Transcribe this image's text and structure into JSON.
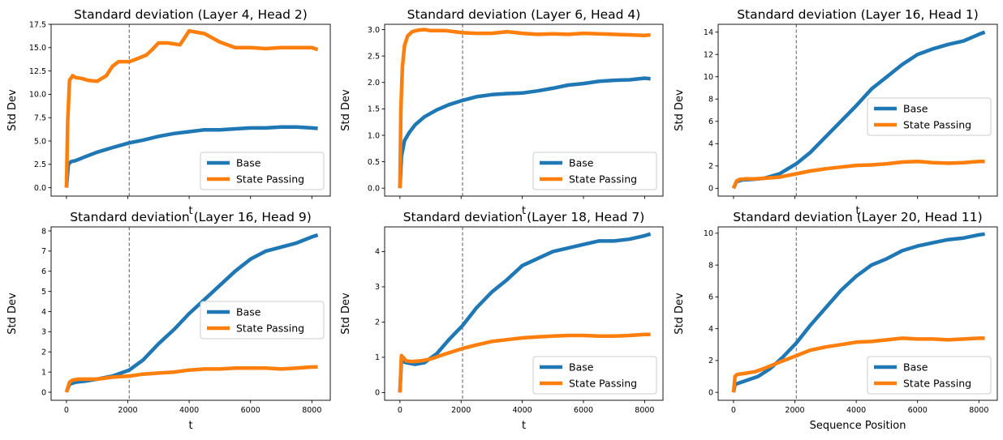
{
  "figure": {
    "xlabel_bottom_right": "Sequence Position"
  },
  "colors": {
    "base": "#1f77b4",
    "state": "#ff7f0e",
    "vline": "#777777",
    "axis": "#000000"
  },
  "chart_data": [
    {
      "type": "line",
      "title": "Standard deviation (Layer 4, Head 2)",
      "xlabel": "t",
      "ylabel": "Std Dev",
      "xlim": [
        -500,
        8600
      ],
      "ylim": [
        -0.9,
        17.5
      ],
      "xticks": [],
      "xtick_labels": [],
      "yticks": [
        0,
        2.5,
        5,
        7.5,
        10,
        12.5,
        15,
        17.5
      ],
      "ytick_labels": [
        "0.0",
        "2.5",
        "5.0",
        "7.5",
        "10.0",
        "12.5",
        "15.0",
        "17.5"
      ],
      "vline": 2048,
      "legend": {
        "position": "lower-right",
        "entries": [
          "Base",
          "State Passing"
        ]
      },
      "series": [
        {
          "name": "Base",
          "x": [
            0,
            60,
            150,
            300,
            600,
            1000,
            1500,
            2048,
            2500,
            3000,
            3500,
            4000,
            4500,
            5000,
            5500,
            6000,
            6500,
            7000,
            7500,
            8000,
            8192
          ],
          "y": [
            0,
            2.5,
            2.8,
            2.9,
            3.3,
            3.8,
            4.3,
            4.8,
            5.1,
            5.5,
            5.8,
            6.0,
            6.2,
            6.2,
            6.3,
            6.4,
            6.4,
            6.5,
            6.5,
            6.4,
            6.35
          ]
        },
        {
          "name": "State Passing",
          "x": [
            0,
            40,
            100,
            200,
            300,
            500,
            700,
            1000,
            1300,
            1500,
            1700,
            2048,
            2300,
            2600,
            2800,
            3000,
            3300,
            3700,
            4000,
            4500,
            5000,
            5500,
            6000,
            6500,
            7000,
            7500,
            8000,
            8192
          ],
          "y": [
            0,
            7.0,
            11.5,
            12.0,
            11.8,
            11.7,
            11.5,
            11.4,
            12.0,
            13.0,
            13.5,
            13.5,
            13.8,
            14.2,
            14.8,
            15.5,
            15.5,
            15.3,
            16.8,
            16.5,
            15.6,
            15.0,
            15.0,
            14.9,
            15.0,
            15.0,
            15.0,
            14.8
          ]
        }
      ]
    },
    {
      "type": "line",
      "title": "Standard deviation (Layer 6, Head 4)",
      "xlabel": "t",
      "ylabel": "Std Dev",
      "xlim": [
        -500,
        8600
      ],
      "ylim": [
        -0.15,
        3.1
      ],
      "xticks": [],
      "xtick_labels": [],
      "yticks": [
        0,
        0.5,
        1,
        1.5,
        2,
        2.5,
        3
      ],
      "ytick_labels": [
        "0.0",
        "0.5",
        "1.0",
        "1.5",
        "2.0",
        "2.5",
        "3.0"
      ],
      "vline": 2048,
      "legend": {
        "position": "lower-right",
        "entries": [
          "Base",
          "State Passing"
        ]
      },
      "series": [
        {
          "name": "Base",
          "x": [
            0,
            50,
            150,
            300,
            500,
            800,
            1200,
            1600,
            2048,
            2500,
            3000,
            3500,
            4000,
            4500,
            5000,
            5500,
            6000,
            6500,
            7000,
            7500,
            8000,
            8192
          ],
          "y": [
            0,
            0.6,
            0.9,
            1.05,
            1.2,
            1.35,
            1.48,
            1.58,
            1.66,
            1.73,
            1.77,
            1.79,
            1.8,
            1.84,
            1.89,
            1.95,
            1.98,
            2.02,
            2.04,
            2.05,
            2.08,
            2.07
          ]
        },
        {
          "name": "State Passing",
          "x": [
            0,
            30,
            80,
            150,
            250,
            400,
            600,
            800,
            1000,
            1500,
            2048,
            2500,
            3000,
            3500,
            4000,
            4500,
            5000,
            5500,
            6000,
            6500,
            7000,
            7500,
            8000,
            8192
          ],
          "y": [
            0,
            1.5,
            2.3,
            2.7,
            2.88,
            2.96,
            2.99,
            3.0,
            2.98,
            2.98,
            2.94,
            2.93,
            2.93,
            2.96,
            2.93,
            2.91,
            2.92,
            2.91,
            2.93,
            2.92,
            2.91,
            2.9,
            2.89,
            2.9
          ]
        }
      ]
    },
    {
      "type": "line",
      "title": "Standard deviation (Layer 16, Head 1)",
      "xlabel": "t",
      "ylabel": "Std Dev",
      "xlim": [
        -500,
        8600
      ],
      "ylim": [
        -0.7,
        14.7
      ],
      "xticks": [],
      "xtick_labels": [],
      "yticks": [
        0,
        2,
        4,
        6,
        8,
        10,
        12,
        14
      ],
      "ytick_labels": [
        "0",
        "2",
        "4",
        "6",
        "8",
        "10",
        "12",
        "14"
      ],
      "vline": 2048,
      "legend": {
        "position": "center-right",
        "entries": [
          "Base",
          "State Passing"
        ]
      },
      "series": [
        {
          "name": "Base",
          "x": [
            0,
            100,
            300,
            600,
            1000,
            1500,
            2048,
            2500,
            3000,
            3500,
            4000,
            4500,
            5000,
            5500,
            6000,
            6500,
            7000,
            7500,
            8000,
            8192
          ],
          "y": [
            0,
            0.6,
            0.75,
            0.8,
            0.9,
            1.3,
            2.2,
            3.2,
            4.6,
            6.0,
            7.4,
            8.9,
            10.0,
            11.1,
            12.0,
            12.5,
            12.9,
            13.2,
            13.8,
            14.0
          ]
        },
        {
          "name": "State Passing",
          "x": [
            0,
            100,
            200,
            400,
            700,
            1000,
            1500,
            2048,
            2500,
            3000,
            3500,
            4000,
            4500,
            5000,
            5500,
            6000,
            6500,
            7000,
            7500,
            8000,
            8192
          ],
          "y": [
            0,
            0.65,
            0.8,
            0.85,
            0.85,
            0.9,
            1.0,
            1.3,
            1.55,
            1.75,
            1.9,
            2.05,
            2.1,
            2.2,
            2.35,
            2.4,
            2.3,
            2.25,
            2.3,
            2.4,
            2.4
          ]
        }
      ]
    },
    {
      "type": "line",
      "title": "Standard deviation (Layer 16, Head 9)",
      "xlabel": "t",
      "ylabel": "Std Dev",
      "xlim": [
        -500,
        8600
      ],
      "ylim": [
        -0.4,
        8.2
      ],
      "xticks": [
        0,
        2000,
        4000,
        6000,
        8000
      ],
      "xtick_labels": [
        "0",
        "2000",
        "4000",
        "6000",
        "8000"
      ],
      "yticks": [
        0,
        1,
        2,
        3,
        4,
        5,
        6,
        7,
        8
      ],
      "ytick_labels": [
        "0",
        "1",
        "2",
        "3",
        "4",
        "5",
        "6",
        "7",
        "8"
      ],
      "vline": 2048,
      "legend": {
        "position": "center-right",
        "entries": [
          "Base",
          "State Passing"
        ]
      },
      "series": [
        {
          "name": "Base",
          "x": [
            0,
            100,
            300,
            600,
            1000,
            1500,
            2048,
            2500,
            3000,
            3500,
            4000,
            4500,
            5000,
            5500,
            6000,
            6500,
            7000,
            7500,
            8000,
            8192
          ],
          "y": [
            0,
            0.4,
            0.5,
            0.55,
            0.65,
            0.8,
            1.1,
            1.6,
            2.4,
            3.1,
            3.9,
            4.6,
            5.3,
            6.0,
            6.6,
            7.0,
            7.2,
            7.4,
            7.7,
            7.8
          ]
        },
        {
          "name": "State Passing",
          "x": [
            0,
            100,
            200,
            400,
            700,
            1000,
            1500,
            2048,
            2500,
            3000,
            3500,
            4000,
            4500,
            5000,
            5500,
            6000,
            6500,
            7000,
            7500,
            8000,
            8192
          ],
          "y": [
            0,
            0.5,
            0.6,
            0.65,
            0.65,
            0.65,
            0.75,
            0.8,
            0.9,
            0.95,
            1.0,
            1.1,
            1.15,
            1.15,
            1.2,
            1.2,
            1.2,
            1.15,
            1.2,
            1.25,
            1.25
          ]
        }
      ]
    },
    {
      "type": "line",
      "title": "Standard deviation (Layer 18, Head 7)",
      "xlabel": "t",
      "ylabel": "Std Dev",
      "xlim": [
        -500,
        8600
      ],
      "ylim": [
        -0.22,
        4.7
      ],
      "xticks": [
        0,
        2000,
        4000,
        6000,
        8000
      ],
      "xtick_labels": [
        "0",
        "2000",
        "4000",
        "6000",
        "8000"
      ],
      "yticks": [
        0,
        1,
        2,
        3,
        4
      ],
      "ytick_labels": [
        "0",
        "1",
        "2",
        "3",
        "4"
      ],
      "vline": 2048,
      "legend": {
        "position": "lower-right",
        "entries": [
          "Base",
          "State Passing"
        ]
      },
      "series": [
        {
          "name": "Base",
          "x": [
            0,
            50,
            200,
            500,
            800,
            1200,
            1600,
            2048,
            2500,
            3000,
            3500,
            4000,
            4500,
            5000,
            5500,
            6000,
            6500,
            7000,
            7500,
            8000,
            8192
          ],
          "y": [
            0,
            0.9,
            0.85,
            0.8,
            0.85,
            1.1,
            1.5,
            1.9,
            2.4,
            2.85,
            3.2,
            3.6,
            3.8,
            4.0,
            4.1,
            4.2,
            4.3,
            4.3,
            4.35,
            4.45,
            4.5
          ]
        },
        {
          "name": "State Passing",
          "x": [
            0,
            50,
            100,
            200,
            400,
            700,
            1000,
            1500,
            2048,
            2500,
            3000,
            3500,
            4000,
            4500,
            5000,
            5500,
            6000,
            6500,
            7000,
            7500,
            8000,
            8192
          ],
          "y": [
            0,
            1.05,
            1.0,
            0.9,
            0.88,
            0.9,
            0.95,
            1.1,
            1.25,
            1.35,
            1.45,
            1.5,
            1.55,
            1.58,
            1.6,
            1.62,
            1.62,
            1.6,
            1.6,
            1.62,
            1.65,
            1.65
          ]
        }
      ]
    },
    {
      "type": "line",
      "title": "Standard deviation (Layer 20, Head 11)",
      "xlabel": "Sequence Position",
      "ylabel": "Std Dev",
      "xlim": [
        -500,
        8600
      ],
      "ylim": [
        -0.5,
        10.4
      ],
      "xticks": [
        0,
        2000,
        4000,
        6000,
        8000
      ],
      "xtick_labels": [
        "0",
        "2000",
        "4000",
        "6000",
        "8000"
      ],
      "yticks": [
        0,
        2,
        4,
        6,
        8,
        10
      ],
      "ytick_labels": [
        "0",
        "2",
        "4",
        "6",
        "8",
        "10"
      ],
      "vline": 2048,
      "legend": {
        "position": "lower-right",
        "entries": [
          "Base",
          "State Passing"
        ]
      },
      "series": [
        {
          "name": "Base",
          "x": [
            0,
            50,
            200,
            500,
            800,
            1200,
            1600,
            2048,
            2500,
            3000,
            3500,
            4000,
            4500,
            5000,
            5500,
            6000,
            6500,
            7000,
            7500,
            8000,
            8192
          ],
          "y": [
            0,
            0.5,
            0.6,
            0.8,
            1.0,
            1.5,
            2.2,
            3.1,
            4.2,
            5.3,
            6.4,
            7.3,
            8.0,
            8.4,
            8.9,
            9.2,
            9.4,
            9.6,
            9.7,
            9.9,
            9.95
          ]
        },
        {
          "name": "State Passing",
          "x": [
            0,
            50,
            100,
            200,
            400,
            700,
            1000,
            1500,
            2048,
            2500,
            3000,
            3500,
            4000,
            4500,
            5000,
            5500,
            6000,
            6500,
            7000,
            7500,
            8000,
            8192
          ],
          "y": [
            0,
            1.0,
            1.1,
            1.15,
            1.2,
            1.3,
            1.5,
            1.9,
            2.3,
            2.65,
            2.85,
            3.0,
            3.15,
            3.2,
            3.3,
            3.4,
            3.35,
            3.35,
            3.3,
            3.35,
            3.4,
            3.4
          ]
        }
      ]
    }
  ]
}
